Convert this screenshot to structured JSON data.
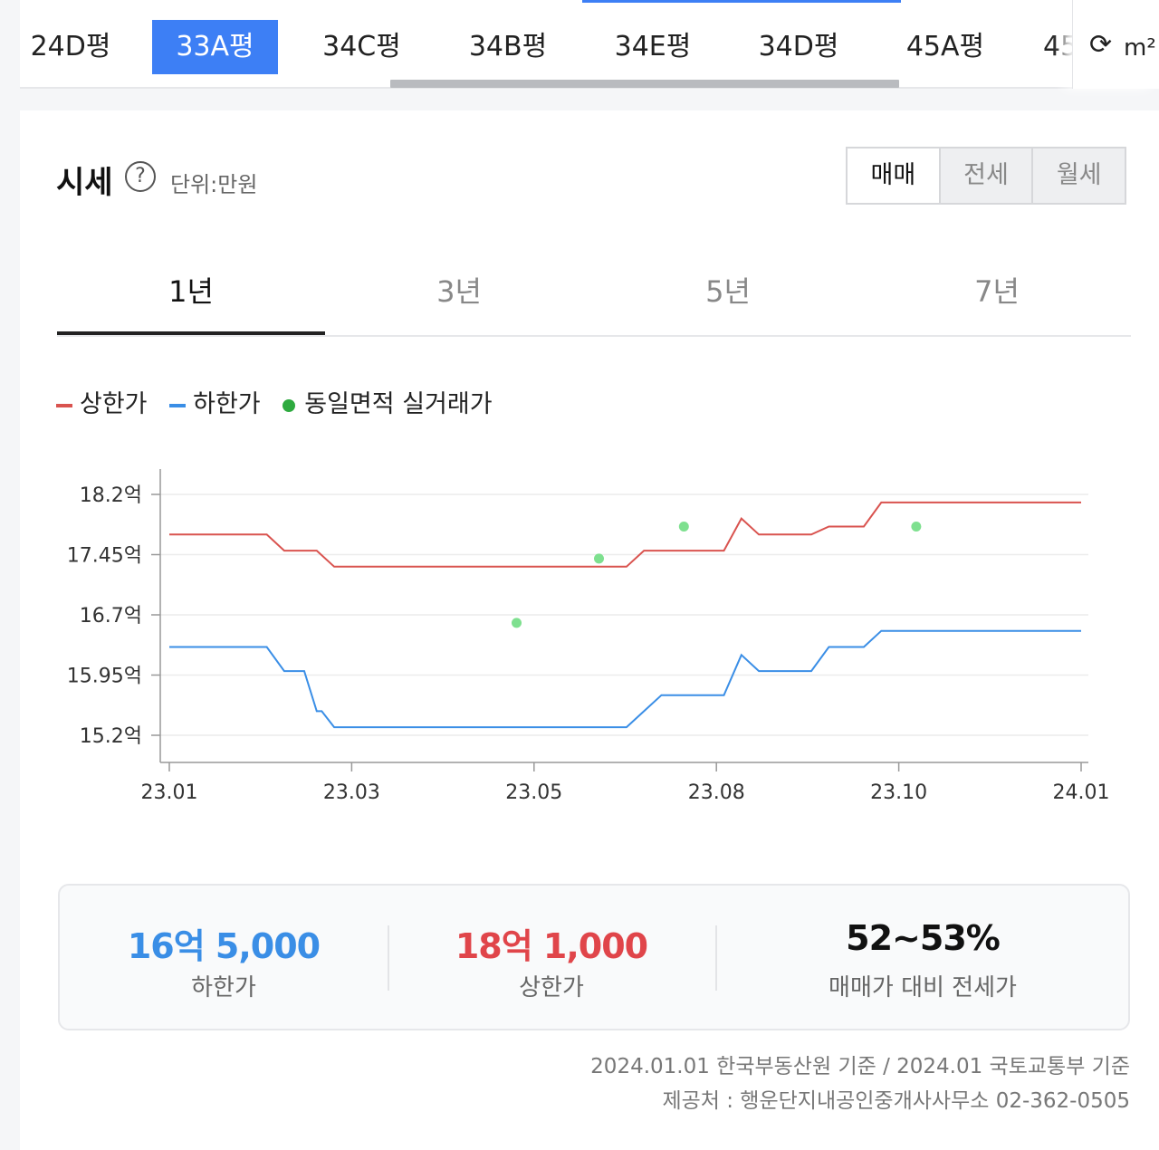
{
  "size_tabs": {
    "items": [
      {
        "label": "24D평",
        "active": false
      },
      {
        "label": "33A평",
        "active": true
      },
      {
        "label": "34C평",
        "active": false
      },
      {
        "label": "34B평",
        "active": false
      },
      {
        "label": "34E평",
        "active": false
      },
      {
        "label": "34D평",
        "active": false
      },
      {
        "label": "45A평",
        "active": false
      },
      {
        "label": "45",
        "active": false
      }
    ],
    "unit_label": "m²"
  },
  "header": {
    "title": "시세",
    "unit": "단위:만원"
  },
  "deal_tabs": [
    {
      "label": "매매",
      "active": true
    },
    {
      "label": "전세",
      "active": false
    },
    {
      "label": "월세",
      "active": false
    }
  ],
  "period_tabs": [
    {
      "label": "1년",
      "active": true
    },
    {
      "label": "3년",
      "active": false
    },
    {
      "label": "5년",
      "active": false
    },
    {
      "label": "7년",
      "active": false
    }
  ],
  "legend": {
    "upper": "상한가",
    "lower": "하한가",
    "actual": "동일면적 실거래가"
  },
  "colors": {
    "upper": "#d9534f",
    "lower": "#3a8ee6",
    "actual": "#7ee08f",
    "accent": "#3d7ff5"
  },
  "chart_data": {
    "type": "line",
    "x_ticks": [
      "23.01",
      "23.03",
      "23.05",
      "23.08",
      "23.10",
      "24.01"
    ],
    "y_ticks": [
      "18.2억",
      "17.45억",
      "16.7억",
      "15.95억",
      "15.2억"
    ],
    "ylim": [
      15.2,
      18.2
    ],
    "series": [
      {
        "name": "상한가",
        "points": [
          [
            "2023-01-01",
            17.7
          ],
          [
            "2023-02-09",
            17.7
          ],
          [
            "2023-02-16",
            17.5
          ],
          [
            "2023-03-01",
            17.5
          ],
          [
            "2023-03-08",
            17.3
          ],
          [
            "2023-07-03",
            17.3
          ],
          [
            "2023-07-10",
            17.5
          ],
          [
            "2023-08-11",
            17.5
          ],
          [
            "2023-08-18",
            17.9
          ],
          [
            "2023-08-25",
            17.7
          ],
          [
            "2023-09-15",
            17.7
          ],
          [
            "2023-09-22",
            17.8
          ],
          [
            "2023-10-06",
            17.8
          ],
          [
            "2023-10-13",
            18.1
          ],
          [
            "2024-01-01",
            18.1
          ]
        ]
      },
      {
        "name": "하한가",
        "points": [
          [
            "2023-01-01",
            16.3
          ],
          [
            "2023-02-09",
            16.3
          ],
          [
            "2023-02-16",
            16.0
          ],
          [
            "2023-02-24",
            16.0
          ],
          [
            "2023-03-01",
            15.5
          ],
          [
            "2023-03-03",
            15.5
          ],
          [
            "2023-03-08",
            15.3
          ],
          [
            "2023-07-03",
            15.3
          ],
          [
            "2023-07-10",
            15.5
          ],
          [
            "2023-07-17",
            15.7
          ],
          [
            "2023-08-11",
            15.7
          ],
          [
            "2023-08-18",
            16.2
          ],
          [
            "2023-08-25",
            16.0
          ],
          [
            "2023-09-15",
            16.0
          ],
          [
            "2023-09-22",
            16.3
          ],
          [
            "2023-10-06",
            16.3
          ],
          [
            "2023-10-13",
            16.5
          ],
          [
            "2024-01-01",
            16.5
          ]
        ]
      },
      {
        "name": "동일면적 실거래가",
        "points": [
          [
            "2023-05-20",
            16.6
          ],
          [
            "2023-06-22",
            17.4
          ],
          [
            "2023-07-26",
            17.8
          ],
          [
            "2023-10-27",
            17.8
          ]
        ]
      }
    ],
    "grid": true
  },
  "summary": [
    {
      "value": "16억 5,000",
      "label": "하한가",
      "color": "#3a8ee6"
    },
    {
      "value": "18억 1,000",
      "label": "상한가",
      "color": "#e0454a"
    },
    {
      "value": "52~53%",
      "label": "매매가 대비 전세가",
      "color": "#111111"
    }
  ],
  "footer": {
    "basis": "2024.01.01 한국부동산원 기준 / 2024.01 국토교통부 기준",
    "provider": "제공처 : 행운단지내공인중개사사무소 02-362-0505"
  }
}
